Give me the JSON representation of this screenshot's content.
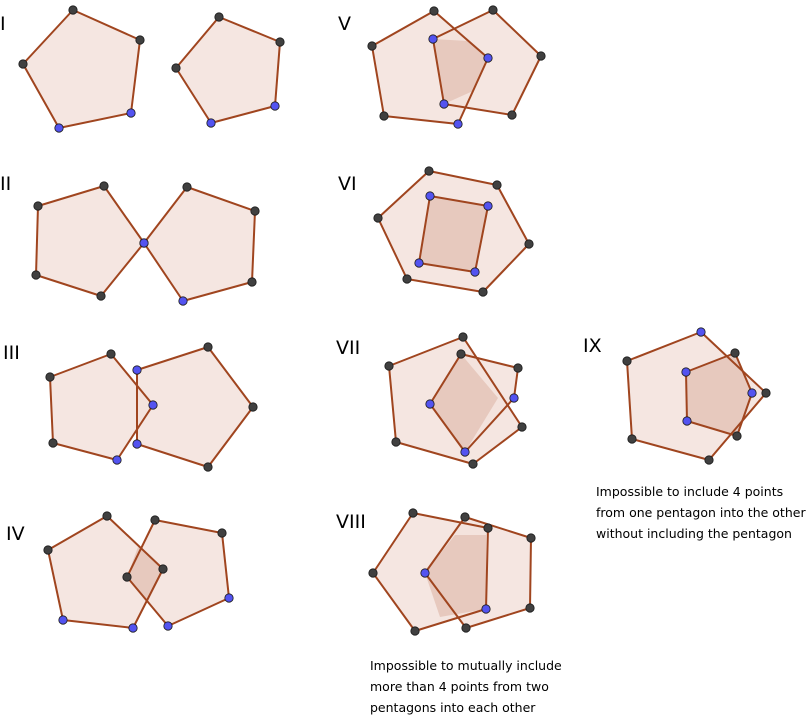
{
  "colors": {
    "edge": "#a0451f",
    "fill": "#f3e2dc",
    "overlap_fill": "#e7c9be",
    "black_point": "#404040",
    "blue_point": "#5353f0",
    "point_stroke": "#1a1a1a",
    "text": "#000000"
  },
  "labels": [
    "I",
    "II",
    "III",
    "IV",
    "V",
    "VI",
    "VII",
    "VIII",
    "IX"
  ],
  "notes": {
    "viii": [
      "Impossible to mutually include",
      "more than 4 points from two",
      "pentagons into each other"
    ],
    "ix": [
      "Impossible to include 4 points",
      "from one pentagon into the other",
      "without including the pentagon"
    ]
  }
}
